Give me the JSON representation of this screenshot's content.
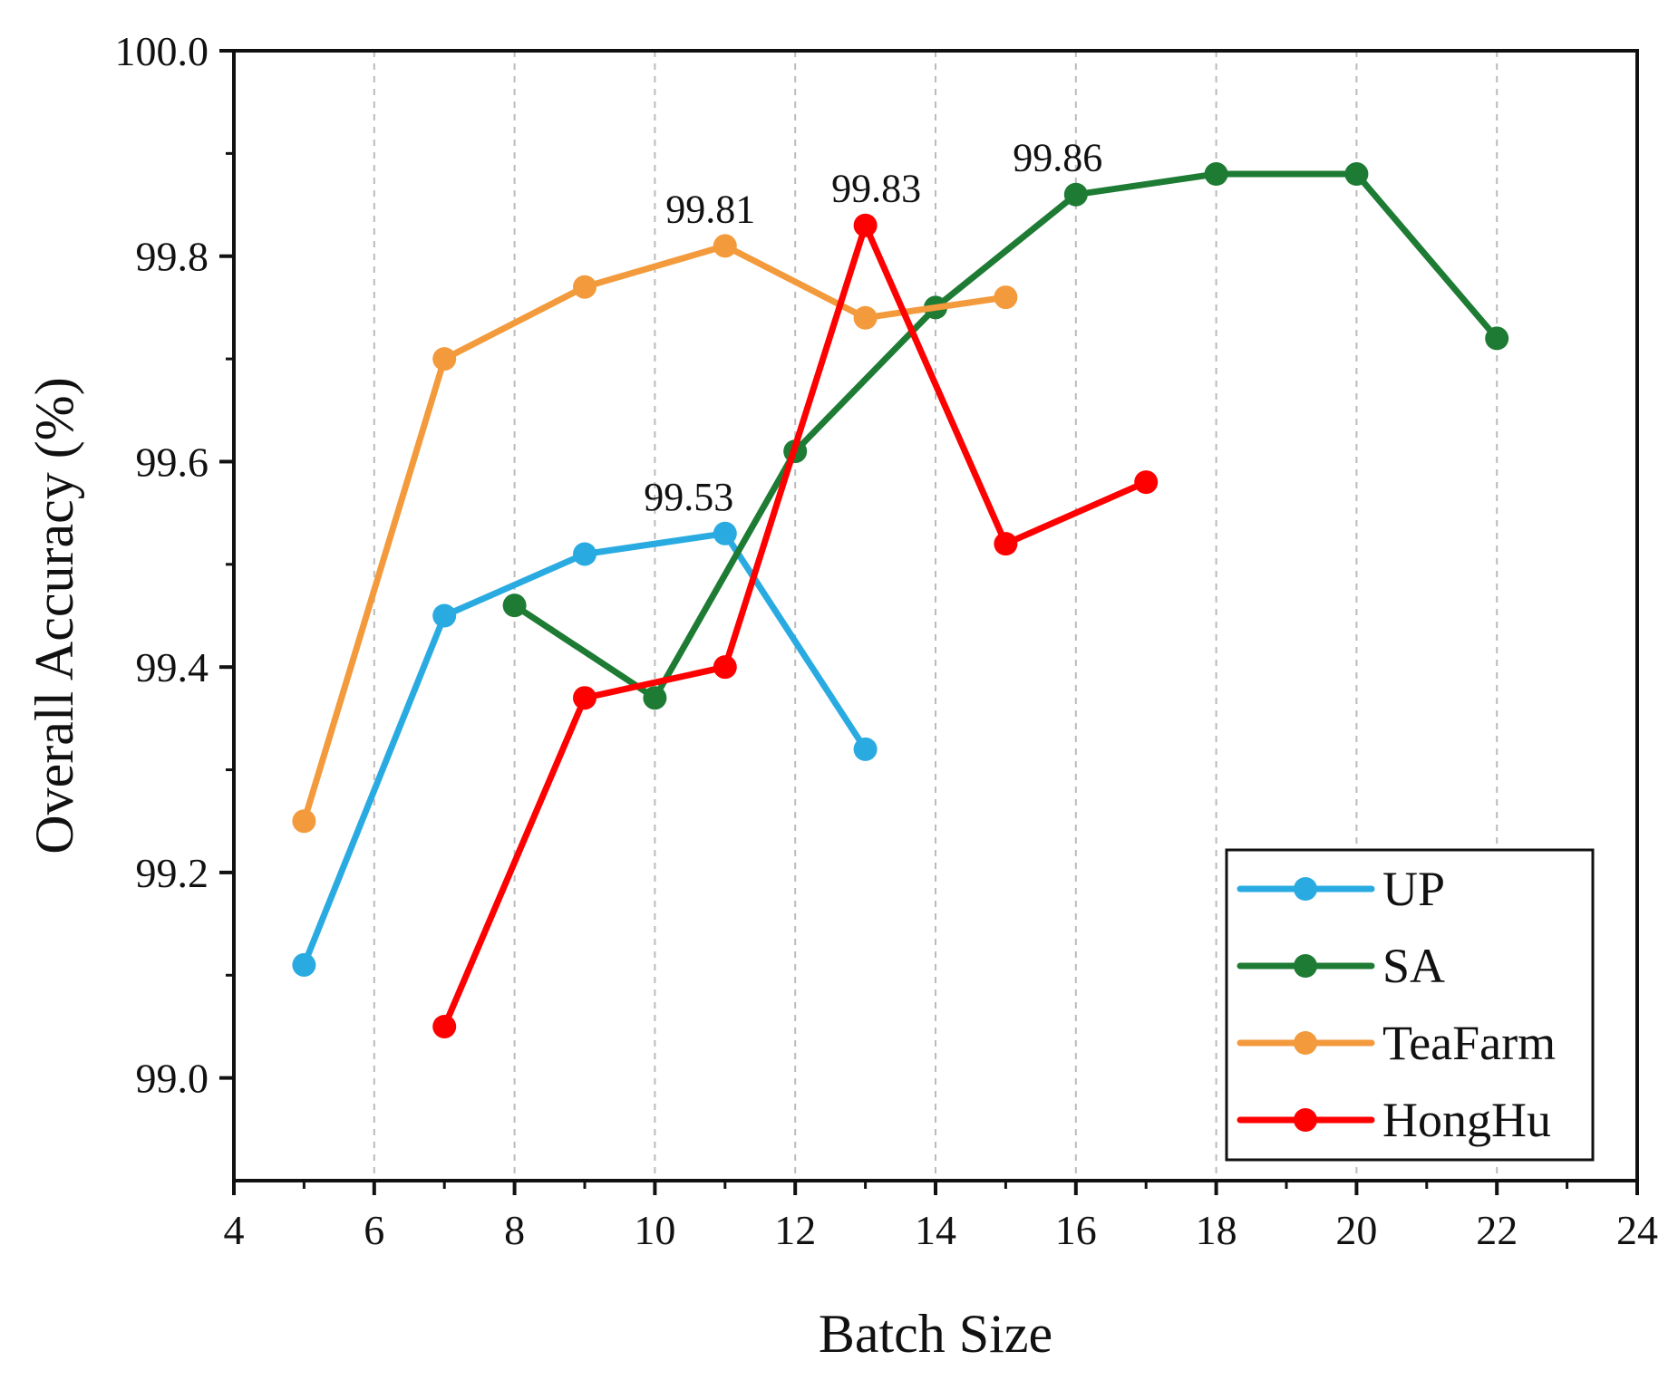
{
  "chart_data": {
    "type": "line",
    "xlabel": "Batch Size",
    "ylabel": "Overall Accuracy (%)",
    "xlim": [
      4,
      24
    ],
    "ylim": [
      98.9,
      100.0
    ],
    "xticks": [
      4,
      6,
      8,
      10,
      12,
      14,
      16,
      18,
      20,
      22,
      24
    ],
    "yticks": [
      "99.0",
      "99.2",
      "99.4",
      "99.6",
      "99.8",
      "100.0"
    ],
    "grid": "vertical dashed",
    "legend_position": "bottom-right",
    "series": [
      {
        "name": "UP",
        "color": "#29ABE2",
        "x": [
          5,
          7,
          9,
          11,
          13
        ],
        "y": [
          99.11,
          99.45,
          99.51,
          99.53,
          99.32
        ]
      },
      {
        "name": "SA",
        "color": "#1E7B34",
        "x": [
          8,
          10,
          12,
          14,
          16,
          18,
          20,
          22
        ],
        "y": [
          99.46,
          99.37,
          99.61,
          99.75,
          99.86,
          99.88,
          99.88,
          99.72
        ]
      },
      {
        "name": "TeaFarm",
        "color": "#F39A3C",
        "x": [
          5,
          7,
          9,
          11,
          13,
          15
        ],
        "y": [
          99.25,
          99.7,
          99.77,
          99.81,
          99.74,
          99.76
        ]
      },
      {
        "name": "HongHu",
        "color": "#FF0000",
        "x": [
          7,
          9,
          11,
          13,
          15,
          17
        ],
        "y": [
          99.05,
          99.37,
          99.4,
          99.83,
          99.52,
          99.58
        ]
      }
    ],
    "annotations": [
      {
        "text": "99.53",
        "x": 11,
        "y": 99.53
      },
      {
        "text": "99.81",
        "x": 11,
        "y": 99.81
      },
      {
        "text": "99.83",
        "x": 13,
        "y": 99.83
      },
      {
        "text": "99.86",
        "x": 16,
        "y": 99.86
      }
    ]
  }
}
